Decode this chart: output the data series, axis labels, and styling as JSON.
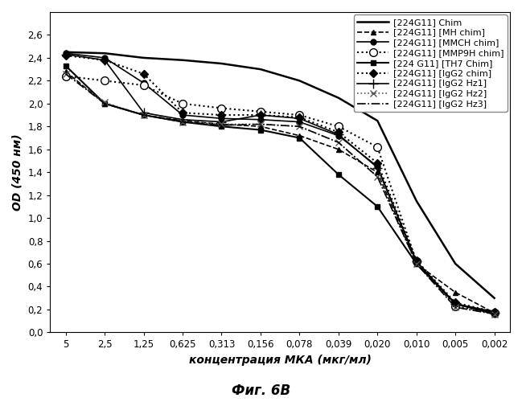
{
  "x_labels": [
    "5",
    "2,5",
    "1,25",
    "0,625",
    "0,313",
    "0,156",
    "0,078",
    "0,039",
    "0,020",
    "0,010",
    "0,005",
    "0,002"
  ],
  "series": [
    {
      "label": "[224G11] Chim",
      "style": "-",
      "marker": "none",
      "color": "#000000",
      "linewidth": 1.8,
      "markersize": 5,
      "markerfacecolor": "#000000",
      "values": [
        2.45,
        2.44,
        2.4,
        2.38,
        2.35,
        2.3,
        2.2,
        2.05,
        1.85,
        1.15,
        0.6,
        0.3
      ]
    },
    {
      "label": "[224G11] [MH chim]",
      "style": "--",
      "marker": "^",
      "color": "#000000",
      "linewidth": 1.2,
      "markersize": 5,
      "markerfacecolor": "#000000",
      "values": [
        2.28,
        2.0,
        1.9,
        1.85,
        1.82,
        1.8,
        1.72,
        1.6,
        1.4,
        0.6,
        0.35,
        0.17
      ]
    },
    {
      "label": "[224G11] [MMCH chim]",
      "style": "-",
      "marker": "o",
      "color": "#000000",
      "linewidth": 1.2,
      "markersize": 5,
      "markerfacecolor": "#000000",
      "values": [
        2.44,
        2.4,
        2.18,
        1.9,
        1.87,
        1.86,
        1.84,
        1.72,
        1.45,
        0.62,
        0.25,
        0.18
      ]
    },
    {
      "label": "[224G11] [MMP9H chim]",
      "style": ":",
      "marker": "o",
      "color": "#000000",
      "linewidth": 1.5,
      "markersize": 7,
      "markerfacecolor": "white",
      "values": [
        2.24,
        2.2,
        2.16,
        2.0,
        1.96,
        1.93,
        1.9,
        1.8,
        1.62,
        0.62,
        0.23,
        0.17
      ]
    },
    {
      "label": "[224 G11] [TH7 Chim]",
      "style": "-",
      "marker": "s",
      "color": "#000000",
      "linewidth": 1.5,
      "markersize": 5,
      "markerfacecolor": "#000000",
      "values": [
        2.33,
        2.0,
        1.9,
        1.84,
        1.8,
        1.77,
        1.7,
        1.38,
        1.1,
        0.6,
        0.25,
        0.16
      ]
    },
    {
      "label": "[224G11] [IgG2 chim]",
      "style": ":",
      "marker": "D",
      "color": "#000000",
      "linewidth": 1.5,
      "markersize": 5,
      "markerfacecolor": "#000000",
      "values": [
        2.42,
        2.38,
        2.26,
        1.92,
        1.9,
        1.9,
        1.88,
        1.75,
        1.48,
        0.63,
        0.26,
        0.18
      ]
    },
    {
      "label": "[224G11] [IgG2 Hz1]",
      "style": "-",
      "marker": "+",
      "color": "#000000",
      "linewidth": 1.2,
      "markersize": 8,
      "markerfacecolor": "#000000",
      "values": [
        2.43,
        2.38,
        1.92,
        1.86,
        1.84,
        1.9,
        1.87,
        1.73,
        1.44,
        0.62,
        0.25,
        0.17
      ]
    },
    {
      "label": "[224G11] [IgG2 Hz2]",
      "style": ":",
      "marker": "x",
      "color": "#555555",
      "linewidth": 1.2,
      "markersize": 6,
      "markerfacecolor": "#555555",
      "values": [
        2.26,
        2.01,
        1.9,
        1.84,
        1.82,
        1.82,
        1.8,
        1.66,
        1.36,
        0.6,
        0.22,
        0.16
      ]
    },
    {
      "label": "[224G11] [IgG2 Hz3]",
      "style": "-.",
      "marker": "none",
      "color": "#000000",
      "linewidth": 1.2,
      "markersize": 5,
      "markerfacecolor": "#000000",
      "values": [
        2.26,
        2.0,
        1.9,
        1.84,
        1.81,
        1.82,
        1.8,
        1.66,
        1.36,
        0.6,
        0.22,
        0.16
      ]
    }
  ],
  "xlabel": "концентрация МКА (мкг/мл)",
  "ylabel": "OD (450 нм)",
  "caption": "Фиг. 6В",
  "ylim": [
    0.0,
    2.8
  ],
  "yticks": [
    0.0,
    0.2,
    0.4,
    0.6,
    0.8,
    1.0,
    1.2,
    1.4,
    1.6,
    1.8,
    2.0,
    2.2,
    2.4,
    2.6
  ],
  "background_color": "#ffffff",
  "legend_fontsize": 8.0,
  "axis_label_fontsize": 10
}
